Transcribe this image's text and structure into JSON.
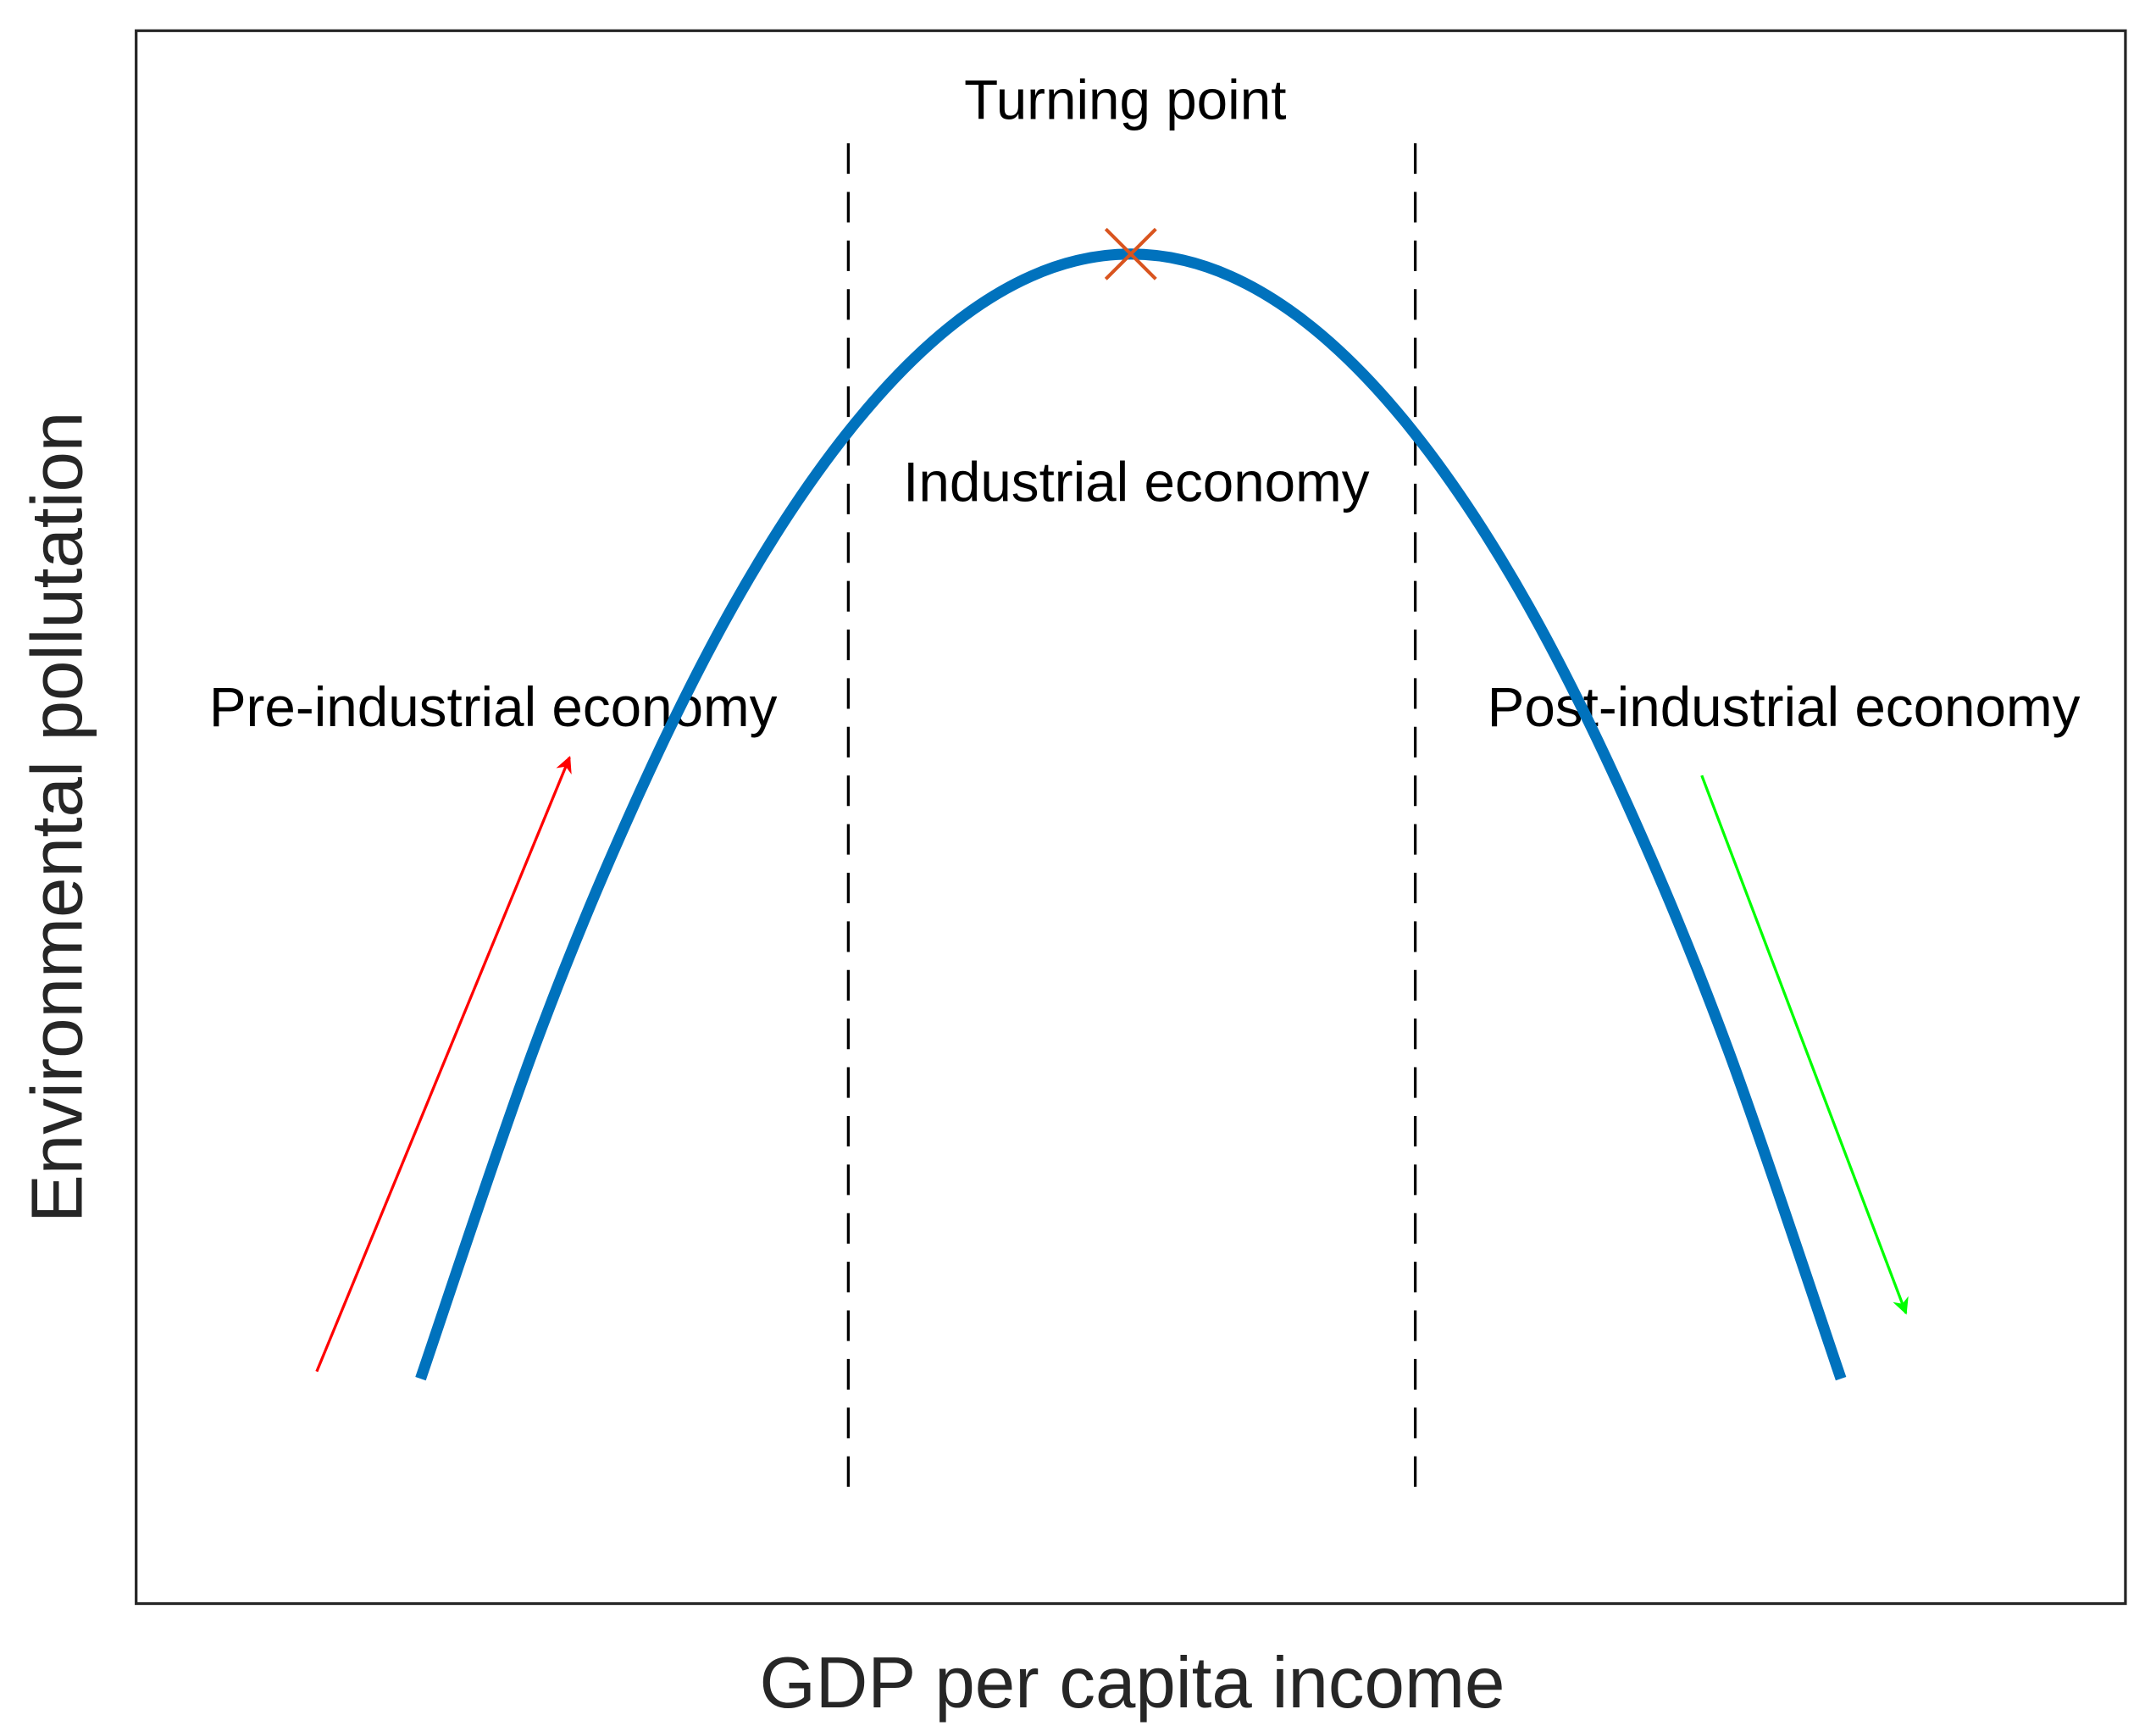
{
  "chart_data": {
    "type": "line",
    "xlabel": "GDP per capita income",
    "ylabel": "Environmental pollutation",
    "x": [
      1.43,
      2,
      2.5,
      3,
      3.5,
      4,
      4.5,
      5,
      5.5,
      6,
      6.5,
      7,
      7.5,
      8,
      8.57
    ],
    "series": [
      {
        "color": "#0072bd",
        "values": [
          1.43,
          3.53,
          5.07,
          6.34,
          7.32,
          8.02,
          8.44,
          8.58,
          8.44,
          8.02,
          7.32,
          6.34,
          5.07,
          3.53,
          1.43
        ]
      }
    ],
    "xlim": [
      0,
      10
    ],
    "ylim": [
      0,
      10
    ],
    "vlines": [
      3.58,
      6.43
    ],
    "turning_point": {
      "x": 5,
      "y": 8.58,
      "color": "#d9541e"
    },
    "annotations": [
      "Turning point",
      "Industrial economy",
      "Pre-industrial economy",
      "Post-industrial economy"
    ]
  }
}
